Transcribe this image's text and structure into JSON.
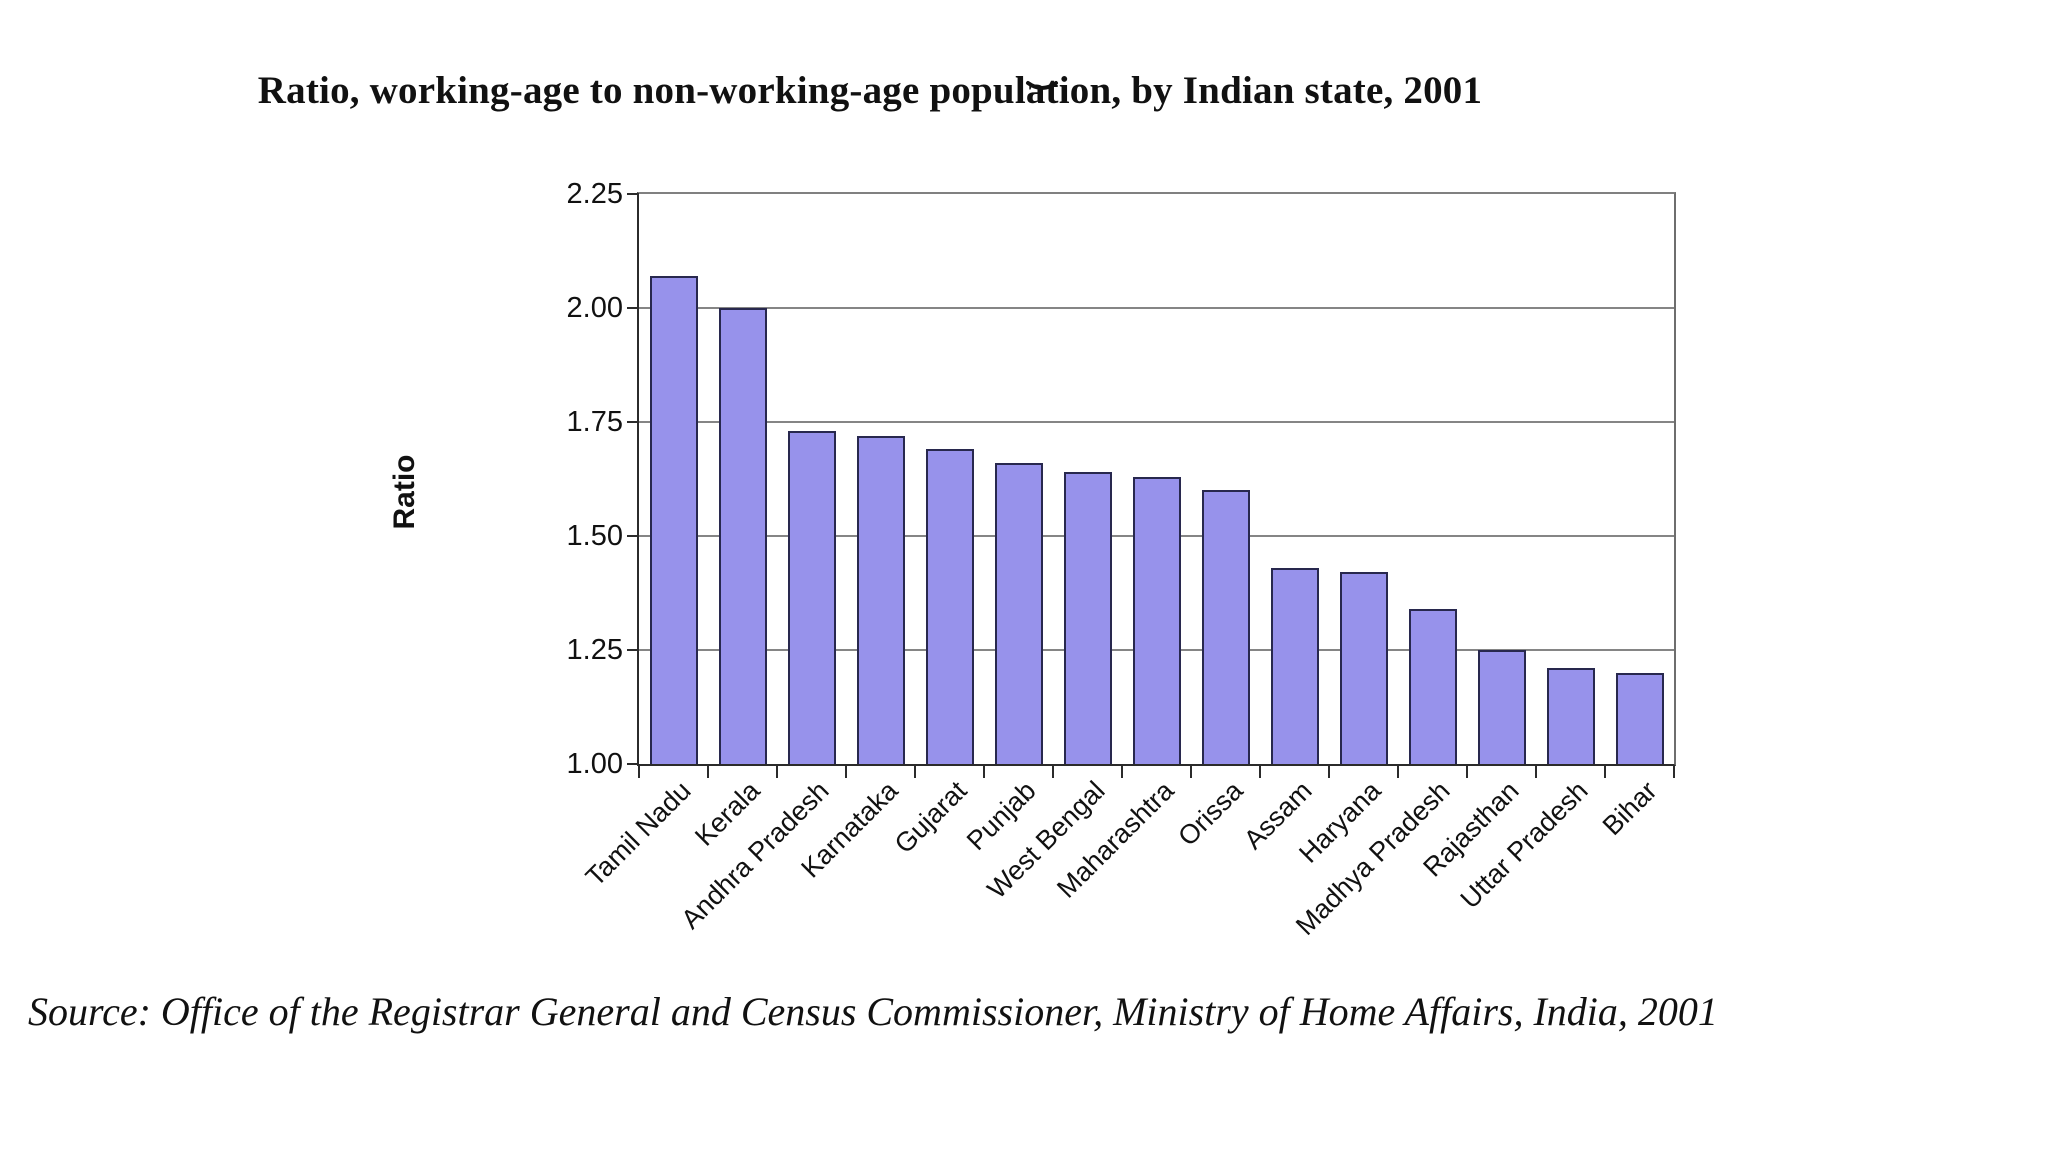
{
  "title": "Ratio, working-age to non-working-age population, by Indian state, 2001",
  "source": "Source: Office of the Registrar General and Census Commissioner, Ministry of Home Affairs, India, 2001",
  "colors": {
    "bar_fill": "#9792EB",
    "bar_border": "#28284E",
    "gridline": "#858585",
    "axis": "#2B2B2B"
  },
  "chart_data": {
    "type": "bar",
    "title": "Ratio, working-age to non-working-age population, by Indian state, 2001",
    "xlabel": "",
    "ylabel": "Ratio",
    "ylim": [
      1.0,
      2.25
    ],
    "yticks": [
      "2.25",
      "2.00",
      "1.75",
      "1.50",
      "1.25",
      "1.00"
    ],
    "grid": true,
    "legend": false,
    "categories": [
      "Tamil Nadu",
      "Kerala",
      "Andhra Pradesh",
      "Karnataka",
      "Gujarat",
      "Punjab",
      "West Bengal",
      "Maharashtra",
      "Orissa",
      "Assam",
      "Haryana",
      "Madhya Pradesh",
      "Rajasthan",
      "Uttar Pradesh",
      "Bihar"
    ],
    "values": [
      2.07,
      2.0,
      1.73,
      1.72,
      1.69,
      1.66,
      1.64,
      1.63,
      1.6,
      1.43,
      1.42,
      1.34,
      1.25,
      1.21,
      1.2
    ]
  }
}
